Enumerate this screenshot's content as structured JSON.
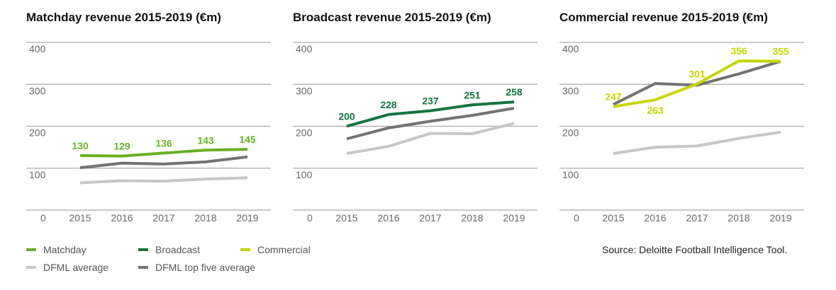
{
  "colors": {
    "matchday": "#6ab023",
    "broadcast": "#127540",
    "commercial": "#c4d600",
    "dfml_average": "#c7c7c7",
    "dfml_top5": "#737373",
    "grid": "#a9a9a9"
  },
  "chart_data": [
    {
      "type": "line",
      "title": "Matchday revenue 2015-2019 (€m)",
      "categories": [
        "2015",
        "2016",
        "2017",
        "2018",
        "2019"
      ],
      "ylim": [
        0,
        400
      ],
      "yticks": [
        0,
        100,
        200,
        300,
        400
      ],
      "highlight": "matchday",
      "series": [
        {
          "name": "DFML average",
          "key": "dfml_average",
          "values": [
            65,
            70,
            69,
            74,
            77
          ]
        },
        {
          "name": "DFML top five average",
          "key": "dfml_top5",
          "values": [
            101,
            112,
            110,
            115,
            127
          ]
        },
        {
          "name": "Matchday",
          "key": "matchday",
          "values": [
            130,
            129,
            136,
            143,
            145
          ],
          "labels": [
            "130",
            "129",
            "136",
            "143",
            "145"
          ],
          "label_pos": [
            "above",
            "above",
            "above",
            "above",
            "above"
          ]
        }
      ]
    },
    {
      "type": "line",
      "title": "Broadcast revenue 2015-2019 (€m)",
      "categories": [
        "2015",
        "2016",
        "2017",
        "2018",
        "2019"
      ],
      "ylim": [
        0,
        400
      ],
      "yticks": [
        0,
        100,
        200,
        300,
        400
      ],
      "highlight": "broadcast",
      "series": [
        {
          "name": "DFML average",
          "key": "dfml_average",
          "values": [
            135,
            152,
            183,
            182,
            207
          ]
        },
        {
          "name": "DFML top five average",
          "key": "dfml_top5",
          "values": [
            170,
            196,
            212,
            226,
            243
          ]
        },
        {
          "name": "Broadcast",
          "key": "broadcast",
          "values": [
            200,
            228,
            237,
            251,
            258
          ],
          "labels": [
            "200",
            "228",
            "237",
            "251",
            "258"
          ],
          "label_pos": [
            "above",
            "above",
            "above",
            "above",
            "above"
          ]
        }
      ]
    },
    {
      "type": "line",
      "title": "Commercial revenue 2015-2019 (€m)",
      "categories": [
        "2015",
        "2016",
        "2017",
        "2018",
        "2019"
      ],
      "ylim": [
        0,
        400
      ],
      "yticks": [
        0,
        100,
        200,
        300,
        400
      ],
      "highlight": "commercial",
      "series": [
        {
          "name": "DFML average",
          "key": "dfml_average",
          "values": [
            135,
            150,
            153,
            171,
            186
          ]
        },
        {
          "name": "DFML top five average",
          "key": "dfml_top5",
          "values": [
            252,
            302,
            298,
            325,
            355
          ]
        },
        {
          "name": "Commercial",
          "key": "commercial",
          "values": [
            247,
            263,
            301,
            356,
            355
          ],
          "labels": [
            "247",
            "263",
            "301",
            "356",
            "355"
          ],
          "label_pos": [
            "above",
            "below",
            "above",
            "above",
            "above"
          ]
        }
      ]
    }
  ],
  "legend": [
    {
      "label": "Matchday",
      "key": "matchday"
    },
    {
      "label": "Broadcast",
      "key": "broadcast"
    },
    {
      "label": "Commercial",
      "key": "commercial"
    },
    {
      "label": "DFML average",
      "key": "dfml_average"
    },
    {
      "label": "DFML top five average",
      "key": "dfml_top5"
    }
  ],
  "source": "Source: Deloitte Football Intelligence Tool."
}
